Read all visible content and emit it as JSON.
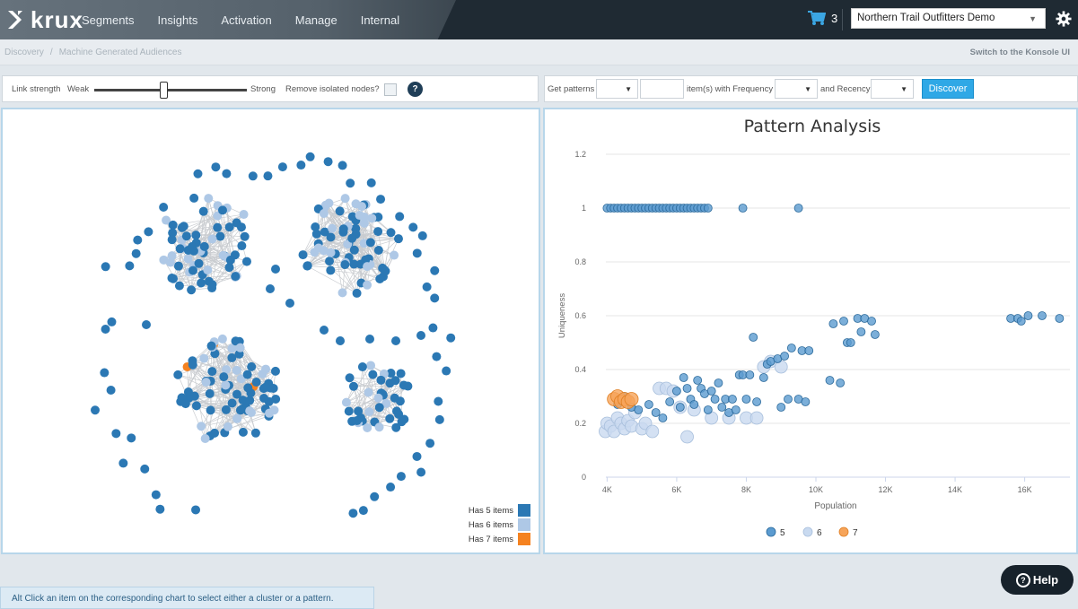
{
  "app": {
    "logo_text": "krux",
    "nav": [
      "Segments",
      "Insights",
      "Activation",
      "Manage",
      "Internal"
    ],
    "cart_count": "3",
    "org_name": "Northern Trail Outfitters Demo"
  },
  "breadcrumb": {
    "items": [
      "Discovery",
      "Machine Generated Audiences"
    ],
    "switch_link": "Switch to the Konsole UI"
  },
  "network_toolbar": {
    "link_strength_label": "Link strength",
    "weak_label": "Weak",
    "strong_label": "Strong",
    "link_strength_value": 0.45,
    "remove_isolated_label": "Remove isolated nodes?",
    "remove_isolated_checked": false,
    "help_glyph": "?"
  },
  "pattern_toolbar": {
    "get_patterns_label": "Get patterns",
    "items_with_frequency_label": "item(s) with Frequency",
    "and_recency_label": "and Recency",
    "discover_label": "Discover",
    "get_patterns_value": "",
    "items_value": "",
    "frequency_value": "",
    "recency_value": ""
  },
  "network_legend": [
    {
      "label": "Has 5 items",
      "color": "#2b78b4"
    },
    {
      "label": "Has 6 items",
      "color": "#aec8e6"
    },
    {
      "label": "Has 7 items",
      "color": "#f58220"
    }
  ],
  "colors": {
    "node_5": "#2b78b4",
    "node_6": "#aec8e6",
    "node_7": "#f58220",
    "accent": "#2fa8e6"
  },
  "chart_data": {
    "type": "scatter",
    "title": "Pattern Analysis",
    "xlabel": "Population",
    "ylabel": "Uniqueness",
    "xlim": [
      3500,
      17300
    ],
    "ylim": [
      0,
      1.2
    ],
    "x_ticks": [
      "4K",
      "6K",
      "8K",
      "10K",
      "12K",
      "14K",
      "16K"
    ],
    "y_ticks": [
      "0",
      "0.2",
      "0.4",
      "0.6",
      "0.8",
      "1",
      "1.2"
    ],
    "grid": true,
    "legend_position": "bottom",
    "series": [
      {
        "name": "5",
        "color": "#5b9bd0",
        "points": [
          [
            4000,
            1
          ],
          [
            4100,
            1
          ],
          [
            4200,
            1
          ],
          [
            4300,
            1
          ],
          [
            4400,
            1
          ],
          [
            4500,
            1
          ],
          [
            4600,
            1
          ],
          [
            4700,
            1
          ],
          [
            4800,
            1
          ],
          [
            4900,
            1
          ],
          [
            5000,
            1
          ],
          [
            5100,
            1
          ],
          [
            5200,
            1
          ],
          [
            5300,
            1
          ],
          [
            5400,
            1
          ],
          [
            5500,
            1
          ],
          [
            5600,
            1
          ],
          [
            5700,
            1
          ],
          [
            5800,
            1
          ],
          [
            5900,
            1
          ],
          [
            6000,
            1
          ],
          [
            6100,
            1
          ],
          [
            6200,
            1
          ],
          [
            6300,
            1
          ],
          [
            6400,
            1
          ],
          [
            6500,
            1
          ],
          [
            6600,
            1
          ],
          [
            6700,
            1
          ],
          [
            6800,
            1
          ],
          [
            6900,
            1
          ],
          [
            7900,
            1
          ],
          [
            9500,
            1
          ],
          [
            4300,
            0.27
          ],
          [
            4500,
            0.3
          ],
          [
            4700,
            0.26
          ],
          [
            4900,
            0.25
          ],
          [
            5200,
            0.27
          ],
          [
            5400,
            0.24
          ],
          [
            5600,
            0.22
          ],
          [
            5800,
            0.28
          ],
          [
            6000,
            0.32
          ],
          [
            6100,
            0.26
          ],
          [
            6200,
            0.37
          ],
          [
            6300,
            0.33
          ],
          [
            6400,
            0.29
          ],
          [
            6500,
            0.27
          ],
          [
            6600,
            0.36
          ],
          [
            6700,
            0.33
          ],
          [
            6800,
            0.31
          ],
          [
            6900,
            0.25
          ],
          [
            7000,
            0.32
          ],
          [
            7100,
            0.29
          ],
          [
            7200,
            0.35
          ],
          [
            7300,
            0.26
          ],
          [
            7400,
            0.29
          ],
          [
            7500,
            0.24
          ],
          [
            7600,
            0.29
          ],
          [
            7700,
            0.25
          ],
          [
            7800,
            0.38
          ],
          [
            7900,
            0.38
          ],
          [
            8000,
            0.29
          ],
          [
            8100,
            0.38
          ],
          [
            8200,
            0.52
          ],
          [
            8300,
            0.28
          ],
          [
            8500,
            0.37
          ],
          [
            8600,
            0.42
          ],
          [
            8700,
            0.43
          ],
          [
            8900,
            0.44
          ],
          [
            9000,
            0.26
          ],
          [
            9100,
            0.45
          ],
          [
            9200,
            0.29
          ],
          [
            9300,
            0.48
          ],
          [
            9500,
            0.29
          ],
          [
            9600,
            0.47
          ],
          [
            9700,
            0.28
          ],
          [
            9800,
            0.47
          ],
          [
            10400,
            0.36
          ],
          [
            10500,
            0.57
          ],
          [
            10700,
            0.35
          ],
          [
            10800,
            0.58
          ],
          [
            10900,
            0.5
          ],
          [
            11000,
            0.5
          ],
          [
            11200,
            0.59
          ],
          [
            11300,
            0.54
          ],
          [
            11400,
            0.59
          ],
          [
            11600,
            0.58
          ],
          [
            11700,
            0.53
          ],
          [
            15600,
            0.59
          ],
          [
            15800,
            0.59
          ],
          [
            15900,
            0.58
          ],
          [
            16100,
            0.6
          ],
          [
            16500,
            0.6
          ],
          [
            17000,
            0.59
          ]
        ]
      },
      {
        "name": "6",
        "color": "#c9daf0",
        "points": [
          [
            3950,
            0.17
          ],
          [
            4000,
            0.2
          ],
          [
            4100,
            0.19
          ],
          [
            4200,
            0.17
          ],
          [
            4300,
            0.22
          ],
          [
            4400,
            0.2
          ],
          [
            4500,
            0.18
          ],
          [
            4600,
            0.21
          ],
          [
            4700,
            0.19
          ],
          [
            4800,
            0.24
          ],
          [
            5000,
            0.18
          ],
          [
            5100,
            0.2
          ],
          [
            5300,
            0.17
          ],
          [
            5500,
            0.33
          ],
          [
            5700,
            0.33
          ],
          [
            5900,
            0.32
          ],
          [
            6100,
            0.26
          ],
          [
            6300,
            0.15
          ],
          [
            6500,
            0.25
          ],
          [
            7000,
            0.22
          ],
          [
            7500,
            0.22
          ],
          [
            8000,
            0.22
          ],
          [
            8300,
            0.22
          ],
          [
            8500,
            0.41
          ],
          [
            8700,
            0.43
          ],
          [
            9000,
            0.41
          ]
        ]
      },
      {
        "name": "7",
        "color": "#f6a45a",
        "points": [
          [
            4200,
            0.29
          ],
          [
            4300,
            0.3
          ],
          [
            4400,
            0.28
          ],
          [
            4500,
            0.29
          ],
          [
            4600,
            0.28
          ],
          [
            4700,
            0.29
          ]
        ]
      }
    ]
  },
  "hint_text": "Alt Click an item on the corresponding chart to select either a cluster or a pattern.",
  "help_label": "Help"
}
